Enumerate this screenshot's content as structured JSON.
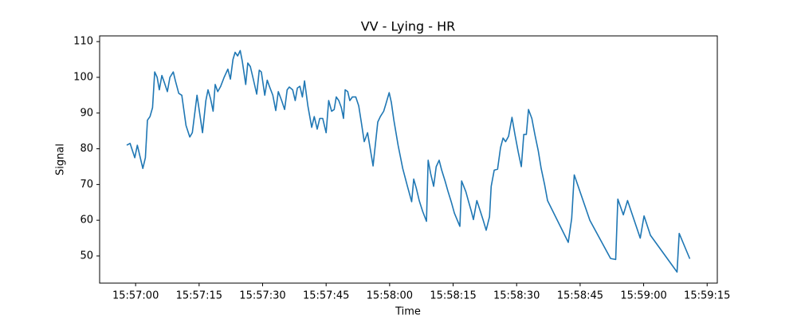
{
  "chart_data": {
    "type": "line",
    "title": "VV - Lying - HR",
    "xlabel": "Time",
    "ylabel": "Signal",
    "color": "#1f77b4",
    "x": [
      57417.9,
      57418.7,
      57419.8,
      57420.4,
      57421.7,
      57422.3,
      57422.8,
      57423.4,
      57424.0,
      57424.5,
      57425.1,
      57425.6,
      57426.2,
      57426.8,
      57427.5,
      57428.1,
      57428.9,
      57429.4,
      57430.2,
      57430.9,
      57431.9,
      57432.8,
      57433.4,
      57434.5,
      57435.8,
      57436.6,
      57437.1,
      57437.7,
      57438.3,
      57438.8,
      57439.4,
      57440.1,
      57440.9,
      57441.8,
      57442.4,
      57443.0,
      57443.5,
      57444.1,
      57444.7,
      57445.2,
      57446.0,
      57446.5,
      57447.1,
      57447.7,
      57448.6,
      57449.2,
      57449.7,
      57450.5,
      57451.1,
      57451.6,
      57452.4,
      57453.1,
      57453.7,
      57454.5,
      57455.2,
      57455.8,
      57456.3,
      57457.1,
      57457.7,
      57458.2,
      57458.8,
      57459.4,
      57459.9,
      57460.7,
      57461.6,
      57462.2,
      57462.9,
      57463.5,
      57464.2,
      57465.0,
      57465.6,
      57466.3,
      57466.9,
      57467.4,
      57468.0,
      57468.6,
      57469.1,
      57469.5,
      57470.1,
      57470.6,
      57471.2,
      57472.0,
      57472.7,
      57473.3,
      57474.0,
      57474.8,
      57476.1,
      57477.2,
      57477.8,
      57478.6,
      57479.1,
      57479.9,
      57480.4,
      57481.0,
      57482.0,
      57483.1,
      57484.2,
      57485.2,
      57485.7,
      57486.3,
      57487.0,
      57487.8,
      57488.7,
      57489.1,
      57489.7,
      57490.4,
      57491.0,
      57491.7,
      57492.3,
      57493.1,
      57493.8,
      57494.6,
      57495.3,
      57496.6,
      57497.0,
      57498.0,
      57498.7,
      57499.3,
      57499.8,
      57500.6,
      57501.3,
      57502.1,
      57502.8,
      57503.6,
      57504.0,
      57504.7,
      57505.5,
      57506.2,
      57506.8,
      57507.4,
      57508.1,
      57508.9,
      57509.6,
      57510.4,
      57511.1,
      57511.7,
      57512.3,
      57512.8,
      57513.6,
      57514.3,
      57515.1,
      57515.8,
      57516.6,
      57517.3,
      57522.2,
      57523.0,
      57523.6,
      57527.3,
      57532.2,
      57533.4,
      57533.9,
      57535.2,
      57536.2,
      57539.2,
      57540.1,
      57541.6,
      57547.9,
      57548.4,
      57550.9
    ],
    "values": [
      81,
      81.5,
      77.5,
      81,
      74.5,
      77.5,
      88,
      89,
      91.5,
      101.5,
      100,
      96.5,
      100.5,
      98.5,
      96,
      100,
      101.5,
      99,
      95.5,
      95,
      86.5,
      83.3,
      84.5,
      95,
      84.5,
      93.5,
      96.5,
      94,
      90.5,
      98,
      96,
      97.5,
      100,
      102.3,
      99.5,
      105,
      107,
      106,
      107.5,
      104.5,
      98,
      104,
      103,
      100,
      95.3,
      102,
      101.5,
      95,
      99.2,
      97.5,
      95,
      90.7,
      96,
      93.5,
      91,
      96.5,
      97.3,
      96.5,
      93.5,
      97,
      97.5,
      94.5,
      99,
      92,
      86,
      89,
      85.5,
      88.5,
      88.5,
      84.5,
      93.5,
      90.5,
      91,
      94.5,
      93.5,
      91.5,
      88.5,
      96.5,
      96,
      93.5,
      94.5,
      94.5,
      92,
      87.5,
      82,
      84.5,
      75.2,
      87.5,
      89,
      90.5,
      92.5,
      95.7,
      93,
      88,
      81,
      74.5,
      69.5,
      65.2,
      71.5,
      69,
      65.5,
      62.5,
      59.7,
      76.8,
      73,
      69.5,
      75,
      76.8,
      74,
      71,
      68,
      65,
      62,
      58.3,
      71,
      68,
      65,
      62.5,
      60.2,
      65.5,
      63,
      60,
      57.2,
      61,
      69.5,
      74,
      74.3,
      80.3,
      83,
      82,
      83.5,
      88.8,
      84,
      79,
      75,
      84,
      84,
      91,
      88.5,
      84,
      79.5,
      74.5,
      70,
      65.5,
      53.8,
      60.5,
      72.7,
      60,
      49.3,
      49,
      65.9,
      61.5,
      65.5,
      55,
      61.2,
      55.8,
      45.5,
      56.3,
      49.2
    ],
    "xlim": [
      57411.5,
      57557.4
    ],
    "xticks": [
      {
        "value": 57420,
        "label": "15:57:00"
      },
      {
        "value": 57435,
        "label": "15:57:15"
      },
      {
        "value": 57450,
        "label": "15:57:30"
      },
      {
        "value": 57465,
        "label": "15:57:45"
      },
      {
        "value": 57480,
        "label": "15:58:00"
      },
      {
        "value": 57495,
        "label": "15:58:15"
      },
      {
        "value": 57510,
        "label": "15:58:30"
      },
      {
        "value": 57525,
        "label": "15:58:45"
      },
      {
        "value": 57540,
        "label": "15:59:00"
      },
      {
        "value": 57555,
        "label": "15:59:15"
      }
    ],
    "ylim": [
      42.4,
      111.6
    ],
    "yticks": [
      50,
      60,
      70,
      80,
      90,
      100,
      110
    ]
  }
}
